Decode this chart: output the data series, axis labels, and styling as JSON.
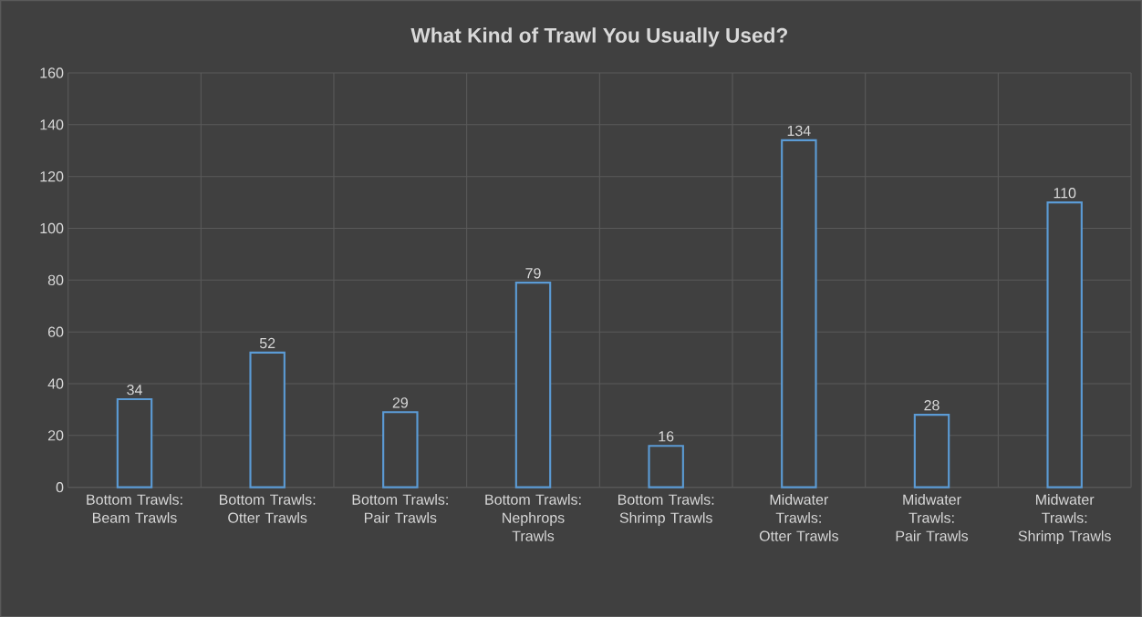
{
  "chart_data": {
    "type": "bar",
    "title": "What Kind of Trawl You Usually Used?",
    "categories": [
      "Bottom Trawls: Beam Trawls",
      "Bottom Trawls: Otter Trawls",
      "Bottom Trawls: Pair Trawls",
      "Bottom Trawls: Nephrops Trawls",
      "Bottom Trawls: Shrimp Trawls",
      "Midwater Trawls: Otter Trawls",
      "Midwater Trawls: Pair Trawls",
      "Midwater Trawls: Shrimp Trawls"
    ],
    "values": [
      34,
      52,
      29,
      79,
      16,
      134,
      28,
      110
    ],
    "color": "#5b9bd5",
    "ylim": [
      0,
      160
    ],
    "yticks": [
      0,
      20,
      40,
      60,
      80,
      100,
      120,
      140,
      160
    ],
    "grid": true,
    "data_labels": true
  }
}
